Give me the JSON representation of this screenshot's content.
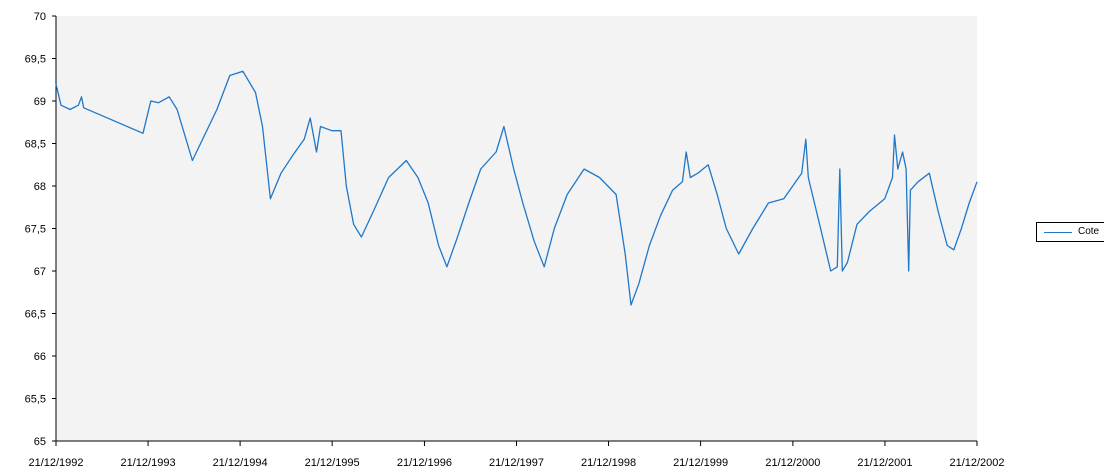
{
  "chart_data": {
    "type": "line",
    "x_label_format": "DD/MM/YYYY",
    "xlim": [
      "21/12/1992",
      "21/12/2002"
    ],
    "ylim": [
      65,
      70
    ],
    "y_ticks": [
      "65",
      "65,5",
      "66",
      "66,5",
      "67",
      "67,5",
      "68",
      "68,5",
      "69",
      "69,5",
      "70"
    ],
    "x_ticks": [
      "21/12/1992",
      "21/12/1993",
      "21/12/1994",
      "21/12/1995",
      "21/12/1996",
      "21/12/1997",
      "21/12/1998",
      "21/12/1999",
      "21/12/2000",
      "21/12/2001",
      "21/12/2002"
    ],
    "grid": false,
    "legend_position": "right",
    "plot_background": "#f3f3f3",
    "series_color": "#1f78c8",
    "series": [
      {
        "name": "Cote",
        "points": [
          [
            "1992-12-21",
            69.2
          ],
          [
            "1993-01-10",
            68.95
          ],
          [
            "1993-02-15",
            68.9
          ],
          [
            "1993-03-20",
            68.95
          ],
          [
            "1993-04-01",
            69.05
          ],
          [
            "1993-04-10",
            68.92
          ],
          [
            "1993-12-01",
            68.62
          ],
          [
            "1994-01-01",
            69.0
          ],
          [
            "1994-02-01",
            68.98
          ],
          [
            "1994-03-15",
            69.05
          ],
          [
            "1994-04-15",
            68.9
          ],
          [
            "1994-06-15",
            68.3
          ],
          [
            "1994-09-20",
            68.9
          ],
          [
            "1994-11-10",
            69.3
          ],
          [
            "1995-01-01",
            69.35
          ],
          [
            "1995-02-20",
            69.1
          ],
          [
            "1995-03-20",
            68.7
          ],
          [
            "1995-04-20",
            67.85
          ],
          [
            "1995-06-01",
            68.15
          ],
          [
            "1995-07-15",
            68.35
          ],
          [
            "1995-09-01",
            68.55
          ],
          [
            "1995-09-25",
            68.8
          ],
          [
            "1995-10-20",
            68.4
          ],
          [
            "1995-11-05",
            68.7
          ],
          [
            "1995-12-20",
            68.65
          ],
          [
            "1996-01-25",
            68.65
          ],
          [
            "1996-02-15",
            68.0
          ],
          [
            "1996-03-15",
            67.55
          ],
          [
            "1996-04-15",
            67.4
          ],
          [
            "1996-06-01",
            67.7
          ],
          [
            "1996-08-01",
            68.1
          ],
          [
            "1996-10-10",
            68.3
          ],
          [
            "1996-11-25",
            68.1
          ],
          [
            "1997-01-05",
            67.8
          ],
          [
            "1997-02-15",
            67.3
          ],
          [
            "1997-03-20",
            67.05
          ],
          [
            "1997-05-01",
            67.4
          ],
          [
            "1997-06-15",
            67.8
          ],
          [
            "1997-08-01",
            68.2
          ],
          [
            "1997-10-01",
            68.4
          ],
          [
            "1997-11-01",
            68.7
          ],
          [
            "1997-12-10",
            68.2
          ],
          [
            "1998-01-15",
            67.8
          ],
          [
            "1998-03-01",
            67.35
          ],
          [
            "1998-04-10",
            67.05
          ],
          [
            "1998-05-20",
            67.5
          ],
          [
            "1998-07-10",
            67.9
          ],
          [
            "1998-09-15",
            68.2
          ],
          [
            "1998-11-15",
            68.1
          ],
          [
            "1999-01-20",
            67.9
          ],
          [
            "1999-02-25",
            67.2
          ],
          [
            "1999-03-20",
            66.6
          ],
          [
            "1999-04-20",
            66.85
          ],
          [
            "1999-06-01",
            67.3
          ],
          [
            "1999-07-15",
            67.65
          ],
          [
            "1999-09-01",
            67.95
          ],
          [
            "1999-10-10",
            68.05
          ],
          [
            "1999-10-25",
            68.4
          ],
          [
            "1999-11-10",
            68.1
          ],
          [
            "1999-12-10",
            68.15
          ],
          [
            "2000-01-20",
            68.25
          ],
          [
            "2000-02-25",
            67.9
          ],
          [
            "2000-04-01",
            67.5
          ],
          [
            "2000-05-20",
            67.2
          ],
          [
            "2000-07-15",
            67.5
          ],
          [
            "2000-09-15",
            67.8
          ],
          [
            "2000-11-15",
            67.85
          ],
          [
            "2001-01-01",
            68.05
          ],
          [
            "2001-01-25",
            68.15
          ],
          [
            "2001-02-10",
            68.55
          ],
          [
            "2001-02-20",
            68.1
          ],
          [
            "2001-04-10",
            67.5
          ],
          [
            "2001-05-20",
            67.0
          ],
          [
            "2001-06-15",
            67.05
          ],
          [
            "2001-06-25",
            68.2
          ],
          [
            "2001-07-05",
            67.0
          ],
          [
            "2001-07-25",
            67.1
          ],
          [
            "2001-09-01",
            67.55
          ],
          [
            "2001-10-20",
            67.7
          ],
          [
            "2001-12-20",
            67.85
          ],
          [
            "2002-01-20",
            68.1
          ],
          [
            "2002-01-28",
            68.6
          ],
          [
            "2002-02-10",
            68.2
          ],
          [
            "2002-03-01",
            68.4
          ],
          [
            "2002-03-15",
            68.2
          ],
          [
            "2002-03-25",
            67.0
          ],
          [
            "2002-04-01",
            67.95
          ],
          [
            "2002-05-01",
            68.05
          ],
          [
            "2002-06-15",
            68.15
          ],
          [
            "2002-07-20",
            67.7
          ],
          [
            "2002-08-25",
            67.3
          ],
          [
            "2002-09-20",
            67.25
          ],
          [
            "2002-10-20",
            67.5
          ],
          [
            "2002-11-20",
            67.8
          ],
          [
            "2002-12-21",
            68.05
          ]
        ]
      }
    ]
  }
}
